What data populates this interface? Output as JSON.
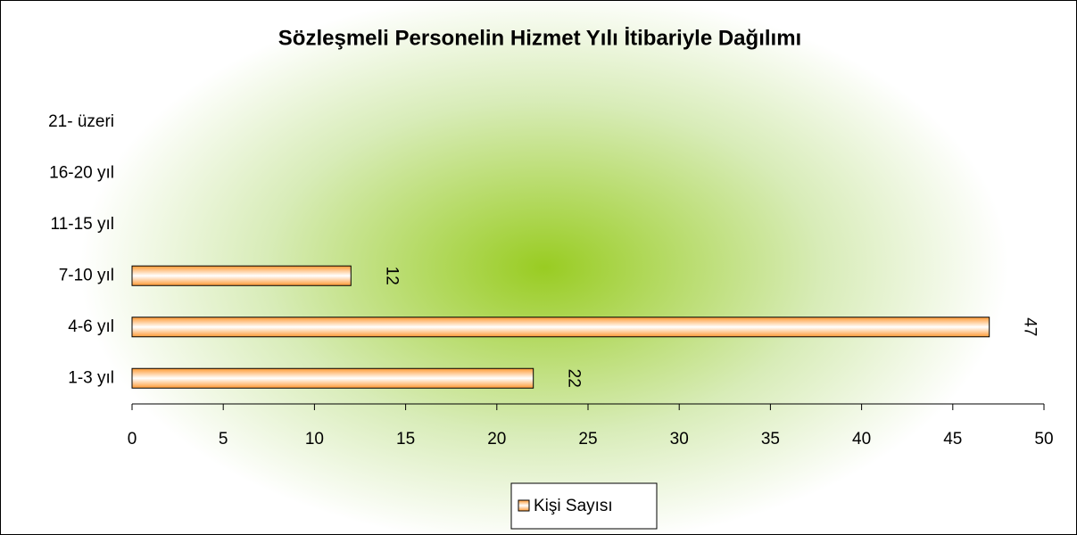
{
  "chart_data": {
    "type": "bar",
    "orientation": "horizontal",
    "title": "Sözleşmeli Personelin Hizmet Yılı İtibariyle Dağılımı",
    "categories": [
      "1-3 yıl",
      "4-6 yıl",
      "7-10 yıl",
      "11-15 yıl",
      "16-20 yıl",
      "21- üzeri"
    ],
    "series": [
      {
        "name": "Kişi Sayısı",
        "color": "#ff9933",
        "values": [
          22,
          47,
          12,
          null,
          null,
          null
        ]
      }
    ],
    "xlim": [
      0,
      50
    ],
    "xticks": [
      0,
      5,
      10,
      15,
      20,
      25,
      30,
      35,
      40,
      45,
      50
    ],
    "legend": "bottom"
  }
}
